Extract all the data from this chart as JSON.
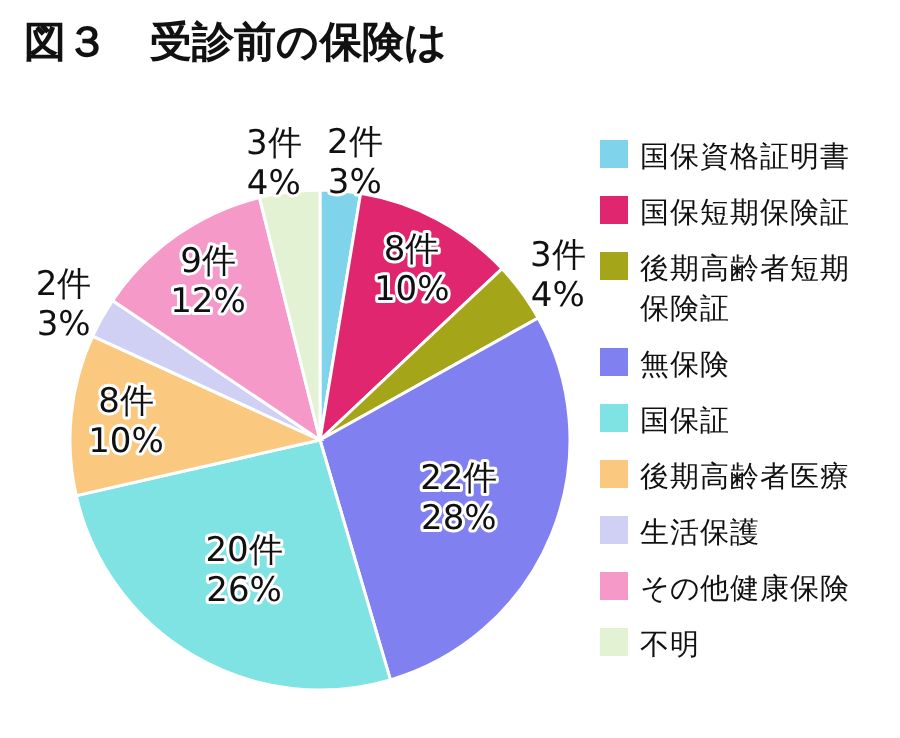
{
  "chart_data": {
    "type": "pie",
    "title": "図３　受診前の保険は",
    "categories": [
      "国保資格証明書",
      "国保短期保険証",
      "後期高齢者短期保険証",
      "無保険",
      "国保証",
      "後期高齢者医療",
      "生活保護",
      "その他健康保険",
      "不明"
    ],
    "values": [
      2,
      8,
      3,
      22,
      20,
      8,
      2,
      9,
      3
    ],
    "value_labels": [
      "2件\n3%",
      "8件\n10%",
      "3件\n4%",
      "22件\n28%",
      "20件\n26%",
      "8件\n10%",
      "2件\n3%",
      "9件\n12%",
      "3件\n4%"
    ],
    "colors": [
      "#7fd3ea",
      "#e0266e",
      "#a5a51a",
      "#8080f0",
      "#7fe3e3",
      "#fac87f",
      "#d0d0f4",
      "#f59ac8",
      "#e4f2d4"
    ],
    "legend": "right"
  }
}
